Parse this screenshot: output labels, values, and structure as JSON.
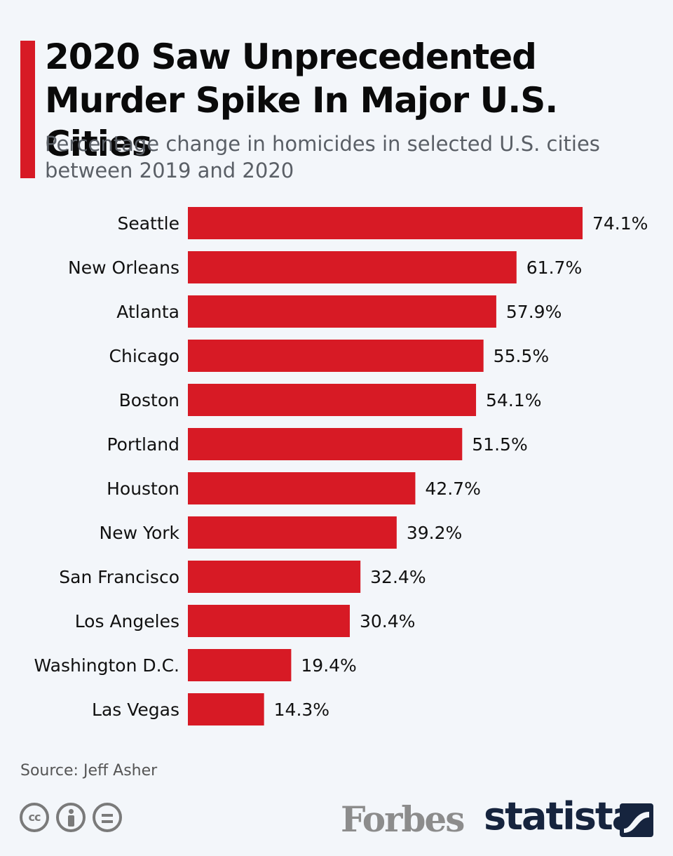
{
  "header": {
    "title": "2020 Saw Unprecedented Murder Spike In Major U.S. Cities",
    "subtitle": "Percentage change in homicides in selected U.S. cities between 2019 and 2020"
  },
  "footer": {
    "source": "Source: Jeff Asher",
    "publisher": "Forbes",
    "brand": "statista",
    "license_icons": [
      "cc-icon",
      "attribution-icon",
      "no-derivatives-icon"
    ]
  },
  "colors": {
    "bar": "#d71a25",
    "accent": "#d71a25",
    "background": "#f3f6fa"
  },
  "chart_data": {
    "type": "bar",
    "orientation": "horizontal",
    "categories": [
      "Seattle",
      "New Orleans",
      "Atlanta",
      "Chicago",
      "Boston",
      "Portland",
      "Houston",
      "New York",
      "San Francisco",
      "Los Angeles",
      "Washington D.C.",
      "Las Vegas"
    ],
    "values": [
      74.1,
      61.7,
      57.9,
      55.5,
      54.1,
      51.5,
      42.7,
      39.2,
      32.4,
      30.4,
      19.4,
      14.3
    ],
    "value_suffix": "%",
    "title": "2020 Saw Unprecedented Murder Spike In Major U.S. Cities",
    "subtitle": "Percentage change in homicides in selected U.S. cities between 2019 and 2020",
    "xlabel": "",
    "ylabel": "",
    "xlim": [
      0,
      74.1
    ],
    "grid": false,
    "legend": "none",
    "data_labels": true
  }
}
